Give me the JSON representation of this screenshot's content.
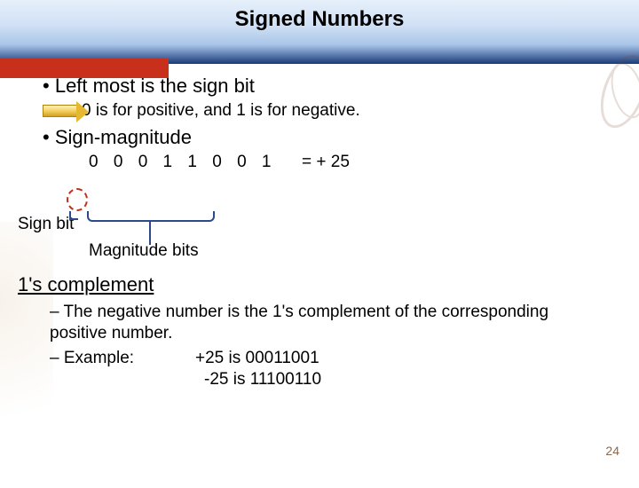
{
  "title": "Signed Numbers",
  "bullets": {
    "b1": "Left most is the sign bit",
    "arrow_text": "0 is for positive, and 1 is for negative.",
    "b2": "Sign-magnitude"
  },
  "bits": {
    "sequence": "0 0 0 1 1 0 0 1",
    "equals": "= + 25"
  },
  "labels": {
    "sign_bit": "Sign bit",
    "magnitude": "Magnitude bits"
  },
  "ones_complement": {
    "heading": "1's complement",
    "line1": "The negative number is the 1's complement of the corresponding positive number.",
    "example_label": "Example:",
    "example_pos": "+25 is 00011001",
    "example_neg": "-25 is 11100110"
  },
  "page_number": "24",
  "colors": {
    "accent_red": "#c9301c",
    "brace_blue": "#2a4a8a",
    "sign_dash": "#c03020",
    "header_dark": "#1a3a7a"
  }
}
